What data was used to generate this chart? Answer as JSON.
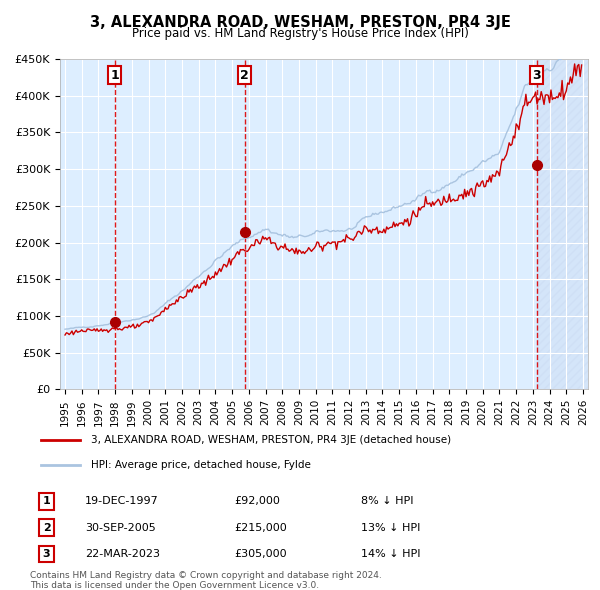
{
  "title": "3, ALEXANDRA ROAD, WESHAM, PRESTON, PR4 3JE",
  "subtitle": "Price paid vs. HM Land Registry's House Price Index (HPI)",
  "legend_line1": "3, ALEXANDRA ROAD, WESHAM, PRESTON, PR4 3JE (detached house)",
  "legend_line2": "HPI: Average price, detached house, Fylde",
  "transactions": [
    {
      "label": "1",
      "date": "19-DEC-1997",
      "price": 92000,
      "hpi_pct": "8% ↓ HPI"
    },
    {
      "label": "2",
      "date": "30-SEP-2005",
      "price": 215000,
      "hpi_pct": "13% ↓ HPI"
    },
    {
      "label": "3",
      "date": "22-MAR-2023",
      "price": 305000,
      "hpi_pct": "14% ↓ HPI"
    }
  ],
  "footer": "Contains HM Land Registry data © Crown copyright and database right 2024.\nThis data is licensed under the Open Government Licence v3.0.",
  "hpi_color": "#aac4e0",
  "property_color": "#cc0000",
  "dot_color": "#aa0000",
  "vline_color": "#dd0000",
  "background_color": "#ffffff",
  "plot_bg_color": "#ddeeff",
  "hatch_bg_color": "#c8d8f0",
  "grid_color": "#ffffff",
  "y_max": 450000,
  "y_min": 0,
  "x_start_year": 1995,
  "x_end_year": 2026
}
